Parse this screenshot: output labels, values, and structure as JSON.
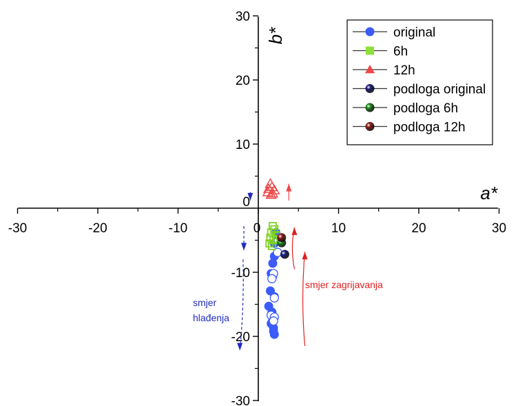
{
  "chart_data": {
    "type": "scatter",
    "xlabel": "a*",
    "ylabel": "b*",
    "xlim": [
      -30,
      30
    ],
    "ylim": [
      -30,
      30
    ],
    "x_ticks": [
      "-30",
      "-20",
      "-10",
      "0",
      "10",
      "20",
      "30"
    ],
    "y_ticks": [
      "30",
      "20",
      "10",
      "0",
      "-10",
      "-20",
      "-30"
    ],
    "grid": false,
    "legend_position": "top-right",
    "series": [
      {
        "name": "original",
        "marker": "circle",
        "color": "#3b5bfa",
        "points": [
          [
            2.2,
            -3.8
          ],
          [
            2.3,
            -4.5
          ],
          [
            2.0,
            -5.5
          ],
          [
            2.0,
            -7.5
          ],
          [
            1.8,
            -8.6
          ],
          [
            1.6,
            -10.2
          ],
          [
            1.8,
            -10.6
          ],
          [
            1.5,
            -12.9
          ],
          [
            2.0,
            -13.8
          ],
          [
            1.3,
            -15.3
          ],
          [
            1.7,
            -16.2
          ],
          [
            1.8,
            -17.5
          ],
          [
            1.6,
            -18.0
          ],
          [
            1.9,
            -18.7
          ],
          [
            1.9,
            -19.2
          ],
          [
            2.0,
            -19.7
          ]
        ]
      },
      {
        "name": "original (hollow)",
        "marker": "circle-open",
        "color": "#3b5bfa",
        "points": [
          [
            2.5,
            -5.0
          ],
          [
            2.4,
            -6.9
          ],
          [
            1.9,
            -10.2
          ],
          [
            1.7,
            -11.0
          ],
          [
            2.0,
            -14.0
          ],
          [
            1.6,
            -16.7
          ],
          [
            2.0,
            -17.0
          ],
          [
            1.9,
            -17.6
          ]
        ]
      },
      {
        "name": "6h",
        "marker": "square-open",
        "color": "#7ed321",
        "points": [
          [
            1.8,
            -2.8
          ],
          [
            2.0,
            -3.3
          ],
          [
            1.6,
            -3.8
          ],
          [
            2.2,
            -4.2
          ],
          [
            1.5,
            -4.6
          ],
          [
            1.9,
            -5.0
          ],
          [
            1.4,
            -5.5
          ],
          [
            1.7,
            -5.9
          ],
          [
            2.3,
            -4.8
          ]
        ]
      },
      {
        "name": "12h",
        "marker": "triangle-open",
        "color": "#f04545",
        "points": [
          [
            1.5,
            3.8
          ],
          [
            1.7,
            3.3
          ],
          [
            1.3,
            3.0
          ],
          [
            2.0,
            2.8
          ],
          [
            1.2,
            2.5
          ],
          [
            1.8,
            2.3
          ],
          [
            1.6,
            2.1
          ]
        ]
      },
      {
        "name": "podloga original",
        "marker": "ball",
        "color": "#1b1b7a",
        "points": [
          [
            3.3,
            -7.2
          ]
        ]
      },
      {
        "name": "podloga 6h",
        "marker": "ball",
        "color": "#1a8c1a",
        "points": [
          [
            2.9,
            -5.4
          ]
        ]
      },
      {
        "name": "podloga 12h",
        "marker": "ball",
        "color": "#8b1a1a",
        "points": [
          [
            2.9,
            -4.6
          ]
        ]
      }
    ],
    "legend": [
      {
        "label": "original",
        "marker": "circle",
        "color": "#3b5bfa"
      },
      {
        "label": "6h",
        "marker": "square",
        "color": "#8ee03a"
      },
      {
        "label": "12h",
        "marker": "triangle",
        "color": "#f04545"
      },
      {
        "label": "podloga original",
        "marker": "ball",
        "color": "#1b1b7a"
      },
      {
        "label": "podloga 6h",
        "marker": "ball",
        "color": "#1a8c1a"
      },
      {
        "label": "podloga 12h",
        "marker": "ball",
        "color": "#8b1a1a"
      }
    ],
    "annotations": [
      {
        "text_lines": [
          "smjer",
          "hlađenja"
        ],
        "color": "#1f2bc0"
      },
      {
        "text_lines": [
          "smjer zagrijavanja"
        ],
        "color": "#e02020"
      }
    ],
    "arrows": [
      {
        "color": "#1f2bc0",
        "style": "solid",
        "from": [
          -1.0,
          2.5
        ],
        "to": [
          -1.0,
          1.2
        ]
      },
      {
        "color": "#f04545",
        "style": "solid",
        "from": [
          3.8,
          1.2
        ],
        "to": [
          3.8,
          3.8
        ]
      },
      {
        "color": "#1f2bc0",
        "style": "dashed",
        "from": [
          -1.8,
          -2.8
        ],
        "to": [
          -1.8,
          -6.6
        ]
      },
      {
        "color": "#e02020",
        "style": "solid",
        "from": [
          4.5,
          -9.5
        ],
        "to": [
          4.5,
          -3.0
        ]
      },
      {
        "color": "#1f2bc0",
        "style": "dashed",
        "from": [
          -1.9,
          -8.0
        ],
        "to": [
          -2.3,
          -22.2
        ]
      },
      {
        "color": "#e02020",
        "style": "solid",
        "from": [
          5.8,
          -21.5
        ],
        "to": [
          5.8,
          -6.8
        ]
      }
    ]
  }
}
